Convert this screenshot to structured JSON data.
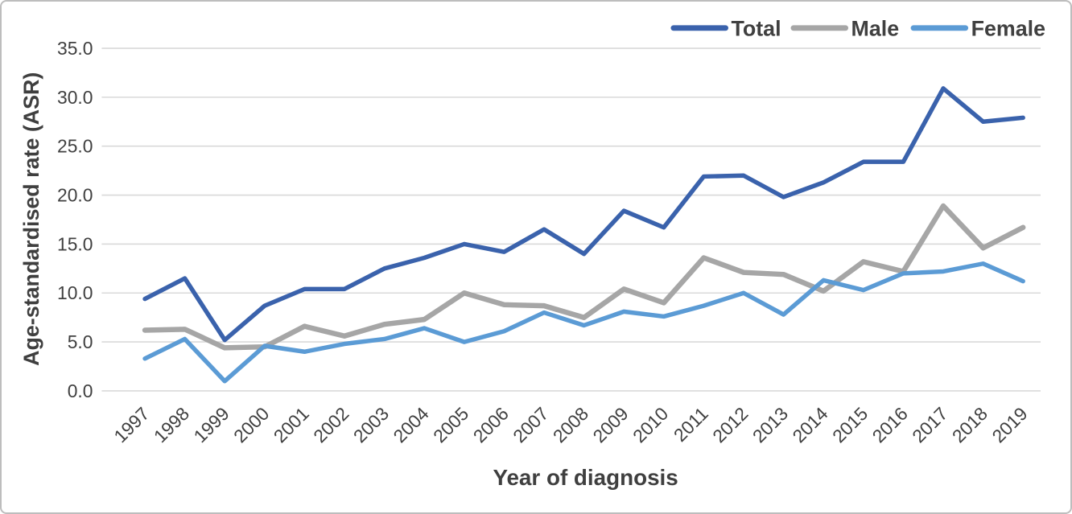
{
  "figure": {
    "background": "#FFFFFF",
    "border_color": "#BDBDBD"
  },
  "colors": {
    "grid": "#D9D9D9",
    "tick_text": "#404040",
    "axis_title_text": "#3F3F3F"
  },
  "chart_data": {
    "type": "line",
    "title": "",
    "xlabel": "Year of diagnosis",
    "ylabel": "Age-standardised rate  (ASR)",
    "x": [
      1997,
      1998,
      1999,
      2000,
      2001,
      2002,
      2003,
      2004,
      2005,
      2006,
      2007,
      2008,
      2009,
      2010,
      2011,
      2012,
      2013,
      2014,
      2015,
      2016,
      2017,
      2018,
      2019
    ],
    "series": [
      {
        "name": "Total",
        "color": "#3A62AC",
        "values": [
          9.4,
          11.5,
          5.2,
          8.7,
          10.4,
          10.4,
          12.5,
          13.6,
          15.0,
          14.2,
          16.5,
          14.0,
          18.4,
          16.7,
          21.9,
          22.0,
          19.8,
          21.3,
          23.4,
          23.4,
          30.9,
          27.5,
          27.9
        ]
      },
      {
        "name": "Male",
        "color": "#A6A6A6",
        "values": [
          6.2,
          6.3,
          4.4,
          4.5,
          6.6,
          5.6,
          6.8,
          7.3,
          10.0,
          8.8,
          8.7,
          7.5,
          10.4,
          9.0,
          13.6,
          12.1,
          11.9,
          10.2,
          13.2,
          12.2,
          18.9,
          14.6,
          16.7
        ]
      },
      {
        "name": "Female",
        "color": "#5B9BD5",
        "values": [
          3.3,
          5.3,
          1.0,
          4.6,
          4.0,
          4.8,
          5.3,
          6.4,
          5.0,
          6.1,
          8.0,
          6.7,
          8.1,
          7.6,
          8.7,
          10.0,
          7.8,
          11.3,
          10.3,
          12.0,
          12.2,
          13.0,
          11.2
        ]
      }
    ],
    "ylim": [
      0,
      35
    ],
    "yticks": [
      0,
      5,
      10,
      15,
      20,
      25,
      30,
      35
    ],
    "ytick_labels": [
      "0.0",
      "5.0",
      "10.0",
      "15.0",
      "20.0",
      "25.0",
      "30.0",
      "35.0"
    ],
    "grid": "horizontal",
    "legend_position": "top-right",
    "legend": [
      "Total",
      "Male",
      "Female"
    ]
  }
}
